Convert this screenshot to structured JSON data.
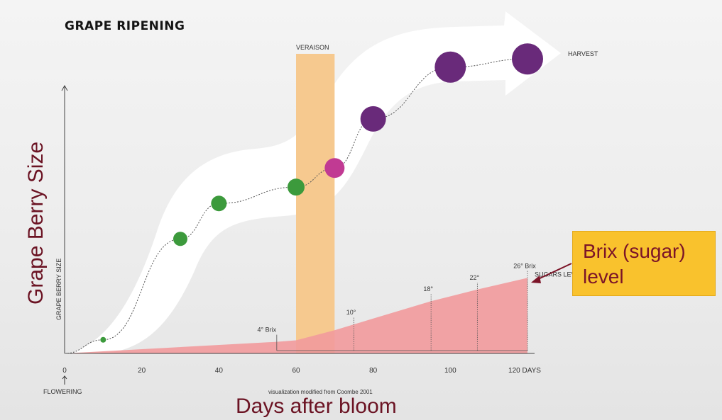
{
  "chart_data": {
    "type": "scatter",
    "title": "GRAPE RIPENING",
    "xlabel": "Days after bloom",
    "ylabel": "Grape Berry Size",
    "x_axis_small_label": "DAYS",
    "y_axis_small_label": "GRAPE BERRY SIZE",
    "x_origin_label": "FLOWERING",
    "xlim": [
      0,
      120
    ],
    "x_ticks": [
      0,
      20,
      40,
      60,
      80,
      100,
      120
    ],
    "veraison": {
      "label": "VERAISON",
      "x_range": [
        60,
        70
      ],
      "color": "#f6c98f"
    },
    "harvest_label": "HARVEST",
    "berries": [
      {
        "x": 10,
        "size": 0.05,
        "radius": 4,
        "color": "#3c9a3c"
      },
      {
        "x": 30,
        "size": 0.42,
        "radius": 10,
        "color": "#3c9a3c"
      },
      {
        "x": 40,
        "size": 0.55,
        "radius": 11,
        "color": "#3c9a3c"
      },
      {
        "x": 60,
        "size": 0.61,
        "radius": 12,
        "color": "#3c9a3c"
      },
      {
        "x": 70,
        "size": 0.68,
        "radius": 14,
        "color": "#c13a93"
      },
      {
        "x": 80,
        "size": 0.86,
        "radius": 18,
        "color": "#692a7a"
      },
      {
        "x": 100,
        "size": 1.05,
        "radius": 22,
        "color": "#692a7a"
      },
      {
        "x": 120,
        "size": 1.08,
        "radius": 22,
        "color": "#692a7a"
      }
    ],
    "sugar_series": {
      "name": "SUGARS LEVEL",
      "color": "#f29a9c",
      "points": [
        {
          "x": 0,
          "brix": 0
        },
        {
          "x": 55,
          "brix": 4
        },
        {
          "x": 60,
          "brix": 4.5
        },
        {
          "x": 70,
          "brix": 8
        },
        {
          "x": 75,
          "brix": 10
        },
        {
          "x": 80,
          "brix": 12
        },
        {
          "x": 95,
          "brix": 18
        },
        {
          "x": 107,
          "brix": 22
        },
        {
          "x": 120,
          "brix": 26
        }
      ],
      "markers": [
        {
          "x": 55,
          "brix": 4,
          "label": "4° Brix"
        },
        {
          "x": 75,
          "brix": 10,
          "label": "10°"
        },
        {
          "x": 95,
          "brix": 18,
          "label": "18°"
        },
        {
          "x": 107,
          "brix": 22,
          "label": "22°"
        },
        {
          "x": 120,
          "brix": 26,
          "label": "26° Brix"
        }
      ]
    },
    "source_note": "visualization modified from Coombe 2001"
  },
  "callout": {
    "line1": "Brix (sugar)",
    "line2": "level",
    "text_color": "#7b1428",
    "bg_color": "#f9c22d"
  }
}
